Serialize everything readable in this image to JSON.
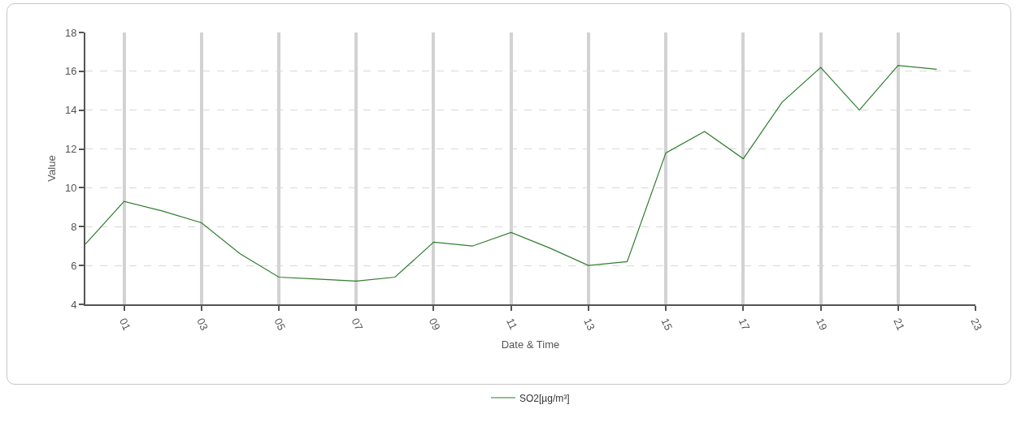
{
  "chart_data": {
    "type": "line",
    "xlabel": "Date & Time",
    "ylabel": "Value",
    "x": [
      0,
      1,
      2,
      3,
      4,
      5,
      6,
      7,
      8,
      9,
      10,
      11,
      12,
      13,
      14,
      15,
      16,
      17,
      18,
      19,
      20,
      21,
      22
    ],
    "series": [
      {
        "name": "SO2[µg/m³]",
        "color": "#2f7d2f",
        "values": [
          7.1,
          9.3,
          8.8,
          8.2,
          6.6,
          5.4,
          5.3,
          5.2,
          5.4,
          7.2,
          7.0,
          7.7,
          6.9,
          6.0,
          6.2,
          11.8,
          12.9,
          11.5,
          14.4,
          16.2,
          14.0,
          16.3,
          16.1
        ]
      }
    ],
    "xlim": [
      0,
      23
    ],
    "xticks": [
      {
        "value": 1,
        "label": "01"
      },
      {
        "value": 3,
        "label": "03"
      },
      {
        "value": 5,
        "label": "05"
      },
      {
        "value": 7,
        "label": "07"
      },
      {
        "value": 9,
        "label": "09"
      },
      {
        "value": 11,
        "label": "11"
      },
      {
        "value": 13,
        "label": "13"
      },
      {
        "value": 15,
        "label": "15"
      },
      {
        "value": 17,
        "label": "17"
      },
      {
        "value": 19,
        "label": "19"
      },
      {
        "value": 21,
        "label": "21"
      },
      {
        "value": 23,
        "label": "23"
      }
    ],
    "ylim": [
      4,
      18
    ],
    "yticks": [
      4,
      6,
      8,
      10,
      12,
      14,
      16,
      18
    ],
    "grid": true,
    "legend": "bottom",
    "marker": "none",
    "line_style": "solid"
  }
}
